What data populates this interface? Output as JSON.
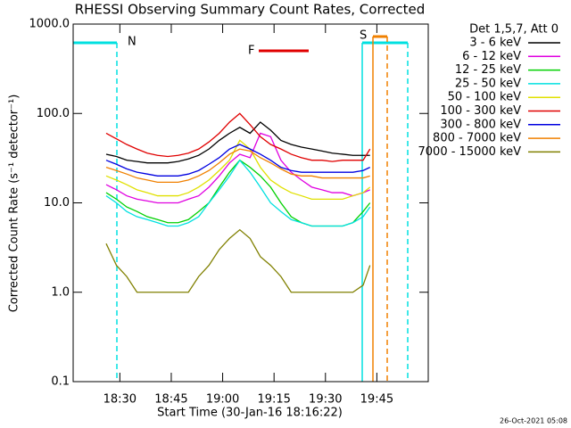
{
  "chart_data": {
    "type": "line",
    "title": "RHESSI Observing Summary Count Rates, Corrected",
    "x_label": "Start Time (30-Jan-16 18:16:22)",
    "y_label": "Corrected Count Rate (s⁻¹ detector⁻¹)",
    "log_y": true,
    "legend_title": "Det 1,5,7, Att 0",
    "footer": "26-Oct-2021 05:08",
    "annotations": [
      {
        "text": "N",
        "color": "#00e5e5"
      },
      {
        "text": "F",
        "color": "#e00000"
      },
      {
        "text": "S",
        "color": "#f08000"
      }
    ],
    "xlim": [
      1096.37,
      1200
    ],
    "xticks": [
      {
        "value": 1110,
        "label": "18:30"
      },
      {
        "value": 1125,
        "label": "18:45"
      },
      {
        "value": 1140,
        "label": "19:00"
      },
      {
        "value": 1155,
        "label": "19:15"
      },
      {
        "value": 1170,
        "label": "19:30"
      },
      {
        "value": 1185,
        "label": "19:45"
      }
    ],
    "ylim": [
      0.1,
      1000
    ],
    "yticks": [
      0.1,
      {
        "value": 1,
        "label": "1.0"
      },
      {
        "value": 10,
        "label": "10.0"
      },
      {
        "value": 100,
        "label": "100.0"
      },
      {
        "value": 1000,
        "label": "1000.0"
      }
    ],
    "x": [
      1106,
      1109,
      1112,
      1115,
      1118,
      1121,
      1124,
      1127,
      1130,
      1133,
      1136,
      1139,
      1142,
      1145,
      1148,
      1151,
      1154,
      1157,
      1160,
      1163,
      1166,
      1169,
      1172,
      1175,
      1178,
      1181,
      1183
    ],
    "series": [
      {
        "name": "3 - 6 keV",
        "color": "#000000",
        "values": [
          35,
          33,
          30,
          29,
          28,
          28,
          28,
          29,
          31,
          34,
          40,
          50,
          60,
          70,
          60,
          80,
          65,
          50,
          45,
          42,
          40,
          38,
          36,
          35,
          34,
          34,
          34
        ]
      },
      {
        "name": "6 - 12 keV",
        "color": "#e000e0",
        "values": [
          16,
          14,
          12,
          11,
          10.5,
          10,
          10,
          10,
          11,
          12,
          15,
          20,
          28,
          35,
          32,
          60,
          55,
          30,
          22,
          18,
          15,
          14,
          13,
          13,
          12,
          13,
          14
        ]
      },
      {
        "name": "12 - 25 keV",
        "color": "#00d000",
        "values": [
          13,
          11,
          9,
          8,
          7,
          6.5,
          6,
          6,
          6.5,
          8,
          10,
          15,
          22,
          30,
          25,
          20,
          15,
          10,
          7,
          6,
          5.5,
          5.5,
          5.5,
          5.5,
          6,
          8,
          10
        ]
      },
      {
        "name": "25 - 50 keV",
        "color": "#00e0e0",
        "values": [
          12,
          10,
          8,
          7,
          6.5,
          6,
          5.5,
          5.5,
          6,
          7,
          10,
          14,
          20,
          30,
          22,
          15,
          10,
          8,
          6.5,
          6,
          5.5,
          5.5,
          5.5,
          5.5,
          6,
          7,
          9
        ]
      },
      {
        "name": "50 - 100 keV",
        "color": "#e0e000",
        "values": [
          20,
          18,
          16,
          14,
          13,
          12,
          12,
          12,
          13,
          15,
          18,
          23,
          30,
          50,
          40,
          25,
          18,
          15,
          13,
          12,
          11,
          11,
          11,
          11,
          12,
          13,
          15
        ]
      },
      {
        "name": "100 - 300 keV",
        "color": "#e00000",
        "values": [
          60,
          52,
          45,
          40,
          36,
          34,
          33,
          34,
          36,
          40,
          48,
          60,
          80,
          100,
          75,
          55,
          45,
          40,
          35,
          32,
          30,
          30,
          29,
          30,
          30,
          30,
          40
        ]
      },
      {
        "name": "300 - 800 keV",
        "color": "#0000e0",
        "values": [
          30,
          27,
          24,
          22,
          21,
          20,
          20,
          20,
          21,
          23,
          27,
          32,
          40,
          45,
          40,
          35,
          30,
          25,
          23,
          22,
          22,
          22,
          22,
          22,
          22,
          23,
          25
        ]
      },
      {
        "name": "800 - 7000 keV",
        "color": "#f08000",
        "values": [
          25,
          23,
          21,
          19,
          18,
          17,
          17,
          17,
          18,
          20,
          23,
          28,
          35,
          40,
          38,
          32,
          28,
          24,
          21,
          20,
          20,
          19,
          19,
          19,
          19,
          19,
          20
        ]
      },
      {
        "name": "7000 - 15000 keV",
        "color": "#808000",
        "values": [
          3.5,
          2,
          1.5,
          1,
          1,
          1,
          1,
          1,
          1,
          1.5,
          2,
          3,
          4,
          5,
          4,
          2.5,
          2,
          1.5,
          1,
          1,
          1,
          1,
          1,
          1,
          1,
          1.2,
          2
        ]
      }
    ]
  }
}
